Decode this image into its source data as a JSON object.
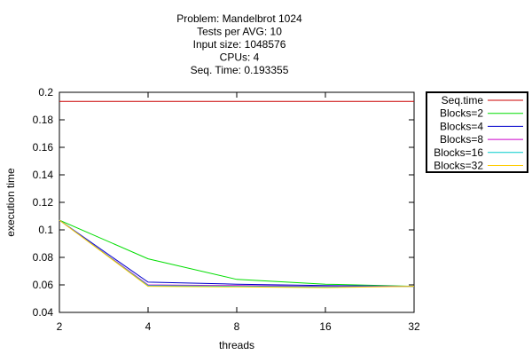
{
  "chart_data": {
    "type": "line",
    "title": [
      "Problem: Mandelbrot 1024",
      "Tests per AVG: 10",
      "Input size: 1048576",
      "CPUs: 4",
      "Seq. Time: 0.193355"
    ],
    "xlabel": "threads",
    "ylabel": "execution time",
    "x_scale": "log2",
    "x": [
      2,
      4,
      8,
      16,
      32
    ],
    "x_ticks": [
      "2",
      "4",
      "8",
      "16",
      "32"
    ],
    "ylim": [
      0.04,
      0.2
    ],
    "y_ticks": [
      "0.04",
      "0.06",
      "0.08",
      "0.1",
      "0.12",
      "0.14",
      "0.16",
      "0.18",
      "0.2"
    ],
    "y_tick_values": [
      0.04,
      0.06,
      0.08,
      0.1,
      0.12,
      0.14,
      0.16,
      0.18,
      0.2
    ],
    "legend_position": "right",
    "grid": false,
    "series": [
      {
        "name": "Seq.time",
        "color": "#cc0000",
        "values": [
          0.193355,
          0.193355,
          0.193355,
          0.193355,
          0.193355
        ]
      },
      {
        "name": "Blocks=2",
        "color": "#00dd00",
        "values": [
          0.107,
          0.079,
          0.064,
          0.0605,
          0.059
        ]
      },
      {
        "name": "Blocks=4",
        "color": "#0000cc",
        "values": [
          0.107,
          0.062,
          0.0605,
          0.0595,
          0.059
        ]
      },
      {
        "name": "Blocks=8",
        "color": "#cc00cc",
        "values": [
          0.107,
          0.06,
          0.0595,
          0.059,
          0.059
        ]
      },
      {
        "name": "Blocks=16",
        "color": "#00cccc",
        "values": [
          0.107,
          0.0595,
          0.059,
          0.0585,
          0.059
        ]
      },
      {
        "name": "Blocks=32",
        "color": "#ffcc00",
        "values": [
          0.107,
          0.059,
          0.0585,
          0.058,
          0.059
        ]
      }
    ]
  }
}
